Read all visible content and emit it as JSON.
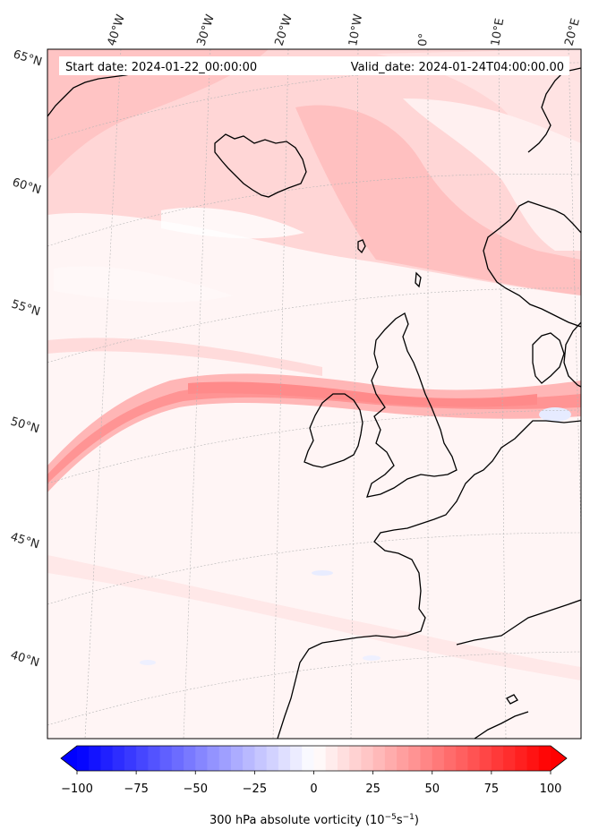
{
  "map": {
    "start_date": "Start date: 2024-01-22_00:00:00",
    "valid_date": "Valid_date: 2024-01-24T04:00:00.00",
    "lon_labels": [
      "40°W",
      "30°W",
      "20°W",
      "10°W",
      "0°",
      "10°E",
      "20°E"
    ],
    "lat_labels": [
      "65°N",
      "60°N",
      "55°N",
      "50°N",
      "45°N",
      "40°N"
    ]
  },
  "colorbar": {
    "ticks": [
      "−100",
      "−75",
      "−50",
      "−25",
      "0",
      "25",
      "50",
      "75",
      "100"
    ],
    "tick_values": [
      -100,
      -75,
      -50,
      -25,
      0,
      25,
      50,
      75,
      100
    ],
    "label_main": "300 hPa absolute vorticity (10",
    "label_sup1": "−5",
    "label_mid": "s",
    "label_sup2": "−1",
    "label_end": ")",
    "min": -100,
    "max": 100,
    "low_color": "#0000ff",
    "mid_color": "#ffffff",
    "high_color": "#ff0000"
  }
}
